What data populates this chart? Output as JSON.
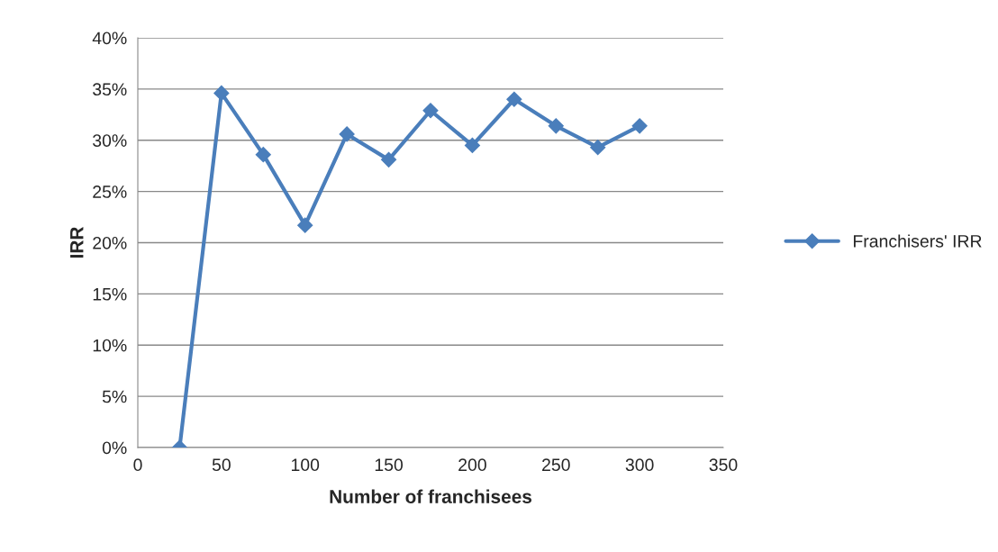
{
  "chart_data": {
    "type": "line",
    "xlabel": "Number of franchisees",
    "ylabel": "IRR",
    "x": [
      25,
      50,
      75,
      100,
      125,
      150,
      175,
      200,
      225,
      250,
      275,
      300
    ],
    "series": [
      {
        "name": "Franchisers' IRR",
        "color": "#4a7ebb",
        "values": [
          0,
          34.6,
          28.6,
          21.7,
          30.6,
          28.1,
          32.9,
          29.5,
          34.0,
          31.4,
          29.3,
          31.4
        ]
      }
    ],
    "xlim": [
      0,
      350
    ],
    "xticks": [
      0,
      50,
      100,
      150,
      200,
      250,
      300,
      350
    ],
    "ylim": [
      0,
      40
    ],
    "yticks": [
      {
        "value": 0,
        "label": "0%"
      },
      {
        "value": 5,
        "label": "5%"
      },
      {
        "value": 10,
        "label": "10%"
      },
      {
        "value": 15,
        "label": "15%"
      },
      {
        "value": 20,
        "label": "20%"
      },
      {
        "value": 25,
        "label": "25%"
      },
      {
        "value": 30,
        "label": "30%"
      },
      {
        "value": 35,
        "label": "35%"
      },
      {
        "value": 40,
        "label": "40%"
      }
    ],
    "grid": "y",
    "legend": "right",
    "marker": "diamond",
    "line_style": "solid"
  }
}
